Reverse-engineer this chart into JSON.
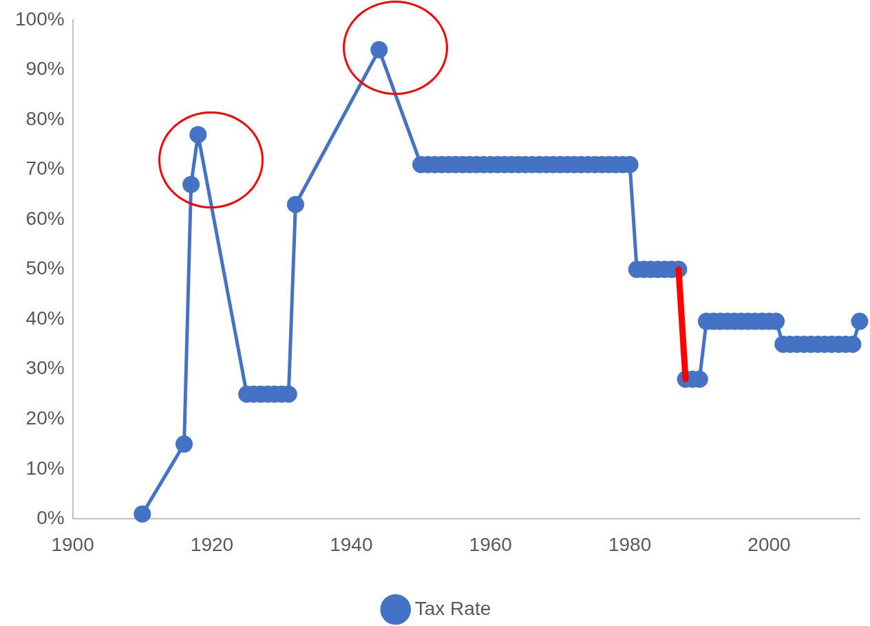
{
  "chart_data": {
    "type": "line",
    "xlim": [
      1900,
      2013
    ],
    "xticks": [
      1900,
      1920,
      1940,
      1960,
      1980,
      2000
    ],
    "ylim": [
      0,
      100
    ],
    "yticks": [
      {
        "value": 0,
        "label": "0%"
      },
      {
        "value": 10,
        "label": "10%"
      },
      {
        "value": 20,
        "label": "20%"
      },
      {
        "value": 30,
        "label": "30%"
      },
      {
        "value": 40,
        "label": "40%"
      },
      {
        "value": 50,
        "label": "50%"
      },
      {
        "value": 60,
        "label": "60%"
      },
      {
        "value": 70,
        "label": "70%"
      },
      {
        "value": 80,
        "label": "80%"
      },
      {
        "value": 90,
        "label": "90%"
      },
      {
        "value": 100,
        "label": "100%"
      }
    ],
    "grid": false,
    "legend": "bottom",
    "marker": "circle",
    "series": [
      {
        "name": "Tax Rate",
        "color": "#4472c4",
        "x": [
          1910,
          1916,
          1917,
          1918,
          1925,
          1926,
          1927,
          1928,
          1929,
          1930,
          1931,
          1932,
          1944,
          1950,
          1951,
          1952,
          1953,
          1954,
          1955,
          1956,
          1957,
          1958,
          1959,
          1960,
          1961,
          1962,
          1963,
          1964,
          1965,
          1966,
          1967,
          1968,
          1969,
          1970,
          1971,
          1972,
          1973,
          1974,
          1975,
          1976,
          1977,
          1978,
          1979,
          1980,
          1981,
          1982,
          1983,
          1984,
          1985,
          1986,
          1987,
          1988,
          1989,
          1990,
          1991,
          1992,
          1993,
          1994,
          1995,
          1996,
          1997,
          1998,
          1999,
          2000,
          2001,
          2002,
          2003,
          2004,
          2005,
          2006,
          2007,
          2008,
          2009,
          2010,
          2011,
          2012,
          2013
        ],
        "values": [
          1,
          15,
          67,
          77,
          25,
          25,
          25,
          25,
          25,
          25,
          25,
          63,
          94,
          71,
          71,
          71,
          71,
          71,
          71,
          71,
          71,
          71,
          71,
          71,
          71,
          71,
          71,
          71,
          71,
          71,
          71,
          71,
          71,
          71,
          71,
          71,
          71,
          71,
          71,
          71,
          71,
          71,
          71,
          71,
          50,
          50,
          50,
          50,
          50,
          50,
          50,
          28,
          28,
          28,
          39.6,
          39.6,
          39.6,
          39.6,
          39.6,
          39.6,
          39.6,
          39.6,
          39.6,
          39.6,
          39.6,
          35,
          35,
          35,
          35,
          35,
          35,
          35,
          35,
          35,
          35,
          35,
          39.6
        ]
      },
      {
        "color": "#ff0000",
        "x": [
          1987,
          1988
        ],
        "values": [
          50,
          28
        ],
        "marker": "none"
      }
    ]
  }
}
